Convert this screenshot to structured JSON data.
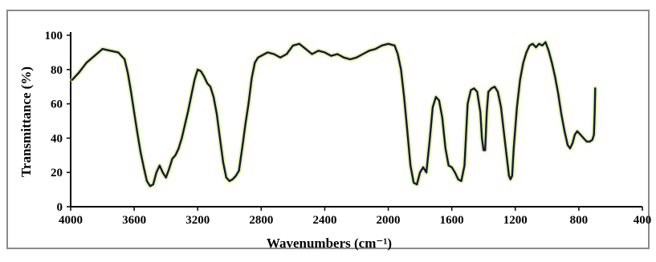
{
  "chart_data": {
    "type": "line",
    "title": "",
    "xlabel": "Wavenumbers (cm⁻¹)",
    "ylabel": "Transmittance (%)",
    "xlim": [
      4000,
      400
    ],
    "ylim": [
      0,
      100
    ],
    "x_reversed": true,
    "grid": false,
    "x_ticks": [
      "4000",
      "3600",
      "3200",
      "2800",
      "2400",
      "2000",
      "1600",
      "1200",
      "800",
      "400"
    ],
    "y_ticks": [
      "0",
      "20",
      "40",
      "60",
      "80",
      "100"
    ],
    "series": [
      {
        "color": "#0a1a4a",
        "highlight_color": "#d8e84a",
        "points": [
          [
            3990,
            74
          ],
          [
            3950,
            78
          ],
          [
            3900,
            84
          ],
          [
            3850,
            88
          ],
          [
            3800,
            92
          ],
          [
            3750,
            91
          ],
          [
            3700,
            90
          ],
          [
            3660,
            86
          ],
          [
            3640,
            78
          ],
          [
            3620,
            67
          ],
          [
            3600,
            55
          ],
          [
            3580,
            43
          ],
          [
            3560,
            32
          ],
          [
            3540,
            23
          ],
          [
            3520,
            15
          ],
          [
            3500,
            12
          ],
          [
            3480,
            13
          ],
          [
            3460,
            20
          ],
          [
            3440,
            24
          ],
          [
            3420,
            20
          ],
          [
            3400,
            17
          ],
          [
            3380,
            22
          ],
          [
            3360,
            28
          ],
          [
            3340,
            30
          ],
          [
            3320,
            34
          ],
          [
            3300,
            40
          ],
          [
            3280,
            48
          ],
          [
            3260,
            56
          ],
          [
            3240,
            65
          ],
          [
            3220,
            74
          ],
          [
            3200,
            80
          ],
          [
            3180,
            79
          ],
          [
            3160,
            76
          ],
          [
            3140,
            72
          ],
          [
            3120,
            70
          ],
          [
            3100,
            64
          ],
          [
            3080,
            54
          ],
          [
            3060,
            40
          ],
          [
            3040,
            26
          ],
          [
            3020,
            17
          ],
          [
            3000,
            15
          ],
          [
            2980,
            16
          ],
          [
            2960,
            18
          ],
          [
            2940,
            21
          ],
          [
            2920,
            34
          ],
          [
            2900,
            48
          ],
          [
            2880,
            60
          ],
          [
            2860,
            75
          ],
          [
            2840,
            84
          ],
          [
            2820,
            87
          ],
          [
            2800,
            88
          ],
          [
            2760,
            90
          ],
          [
            2720,
            89
          ],
          [
            2680,
            87
          ],
          [
            2640,
            89
          ],
          [
            2600,
            94
          ],
          [
            2560,
            95
          ],
          [
            2520,
            92
          ],
          [
            2480,
            89
          ],
          [
            2440,
            91
          ],
          [
            2400,
            90
          ],
          [
            2360,
            88
          ],
          [
            2320,
            89
          ],
          [
            2280,
            87
          ],
          [
            2240,
            86
          ],
          [
            2200,
            87
          ],
          [
            2160,
            89
          ],
          [
            2120,
            91
          ],
          [
            2080,
            92
          ],
          [
            2040,
            94
          ],
          [
            2000,
            95
          ],
          [
            1960,
            94
          ],
          [
            1940,
            89
          ],
          [
            1920,
            80
          ],
          [
            1900,
            64
          ],
          [
            1880,
            44
          ],
          [
            1860,
            24
          ],
          [
            1840,
            14
          ],
          [
            1820,
            13
          ],
          [
            1800,
            20
          ],
          [
            1780,
            23
          ],
          [
            1760,
            20
          ],
          [
            1740,
            38
          ],
          [
            1720,
            58
          ],
          [
            1700,
            64
          ],
          [
            1680,
            62
          ],
          [
            1660,
            52
          ],
          [
            1640,
            34
          ],
          [
            1620,
            24
          ],
          [
            1600,
            23
          ],
          [
            1580,
            20
          ],
          [
            1560,
            16
          ],
          [
            1540,
            15
          ],
          [
            1520,
            24
          ],
          [
            1500,
            60
          ],
          [
            1480,
            68
          ],
          [
            1460,
            69
          ],
          [
            1440,
            67
          ],
          [
            1420,
            55
          ],
          [
            1410,
            40
          ],
          [
            1400,
            33
          ],
          [
            1390,
            33
          ],
          [
            1380,
            55
          ],
          [
            1370,
            67
          ],
          [
            1350,
            69
          ],
          [
            1330,
            70
          ],
          [
            1310,
            67
          ],
          [
            1290,
            58
          ],
          [
            1270,
            42
          ],
          [
            1250,
            26
          ],
          [
            1240,
            18
          ],
          [
            1230,
            16
          ],
          [
            1220,
            18
          ],
          [
            1210,
            34
          ],
          [
            1190,
            58
          ],
          [
            1170,
            74
          ],
          [
            1150,
            84
          ],
          [
            1130,
            90
          ],
          [
            1110,
            94
          ],
          [
            1090,
            95
          ],
          [
            1070,
            93
          ],
          [
            1050,
            95
          ],
          [
            1030,
            94
          ],
          [
            1010,
            96
          ],
          [
            990,
            91
          ],
          [
            970,
            84
          ],
          [
            950,
            76
          ],
          [
            930,
            66
          ],
          [
            910,
            54
          ],
          [
            890,
            44
          ],
          [
            870,
            36
          ],
          [
            855,
            34
          ],
          [
            840,
            37
          ],
          [
            825,
            42
          ],
          [
            810,
            44
          ],
          [
            790,
            42
          ],
          [
            770,
            40
          ],
          [
            750,
            38
          ],
          [
            730,
            38
          ],
          [
            715,
            39
          ],
          [
            705,
            42
          ],
          [
            700,
            56
          ],
          [
            697,
            69
          ]
        ]
      }
    ]
  }
}
